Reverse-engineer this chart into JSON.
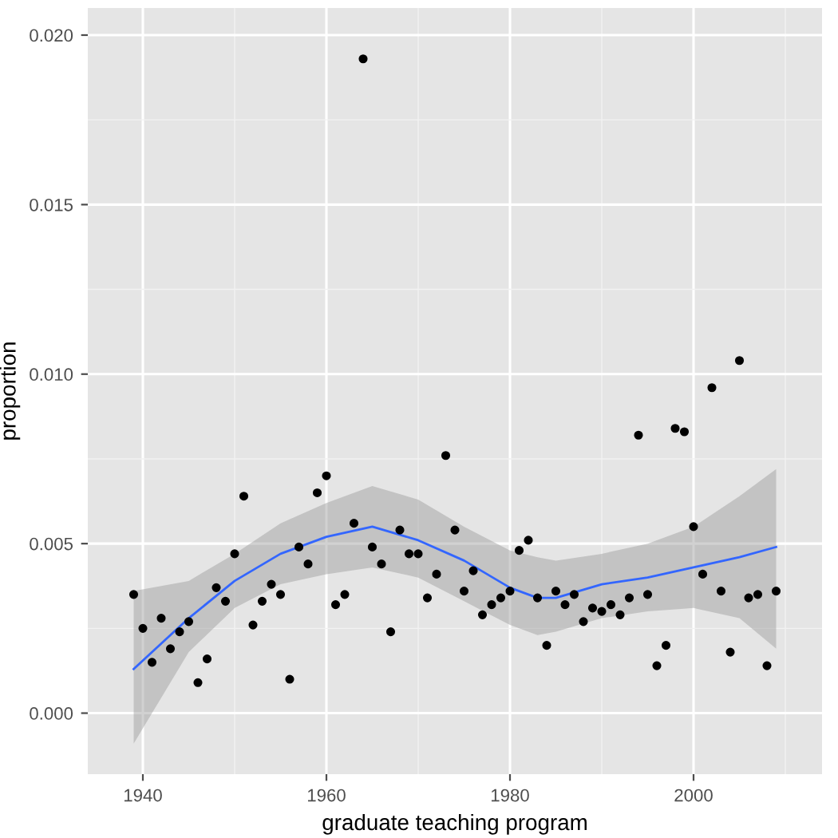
{
  "chart_data": {
    "type": "scatter",
    "xlabel": "graduate teaching program",
    "ylabel": "proportion",
    "xlim": [
      1934,
      2014
    ],
    "ylim": [
      -0.0018,
      0.0208
    ],
    "xticks": [
      1940,
      {
        "value": 1950,
        "label": null
      },
      1960,
      {
        "value": 1970,
        "label": null
      },
      1980,
      {
        "value": 1990,
        "label": null
      },
      2000,
      {
        "value": 2010,
        "label": null
      }
    ],
    "yticks": [
      {
        "value": 0,
        "label": "0.000"
      },
      {
        "value": 0.0025,
        "label": null
      },
      {
        "value": 0.005,
        "label": "0.005"
      },
      {
        "value": 0.0075,
        "label": null
      },
      {
        "value": 0.01,
        "label": "0.010"
      },
      {
        "value": 0.0125,
        "label": null
      },
      {
        "value": 0.015,
        "label": "0.015"
      },
      {
        "value": 0.0175,
        "label": null
      },
      {
        "value": 0.02,
        "label": "0.020"
      }
    ],
    "grid": true,
    "series": [
      {
        "marker": "circle",
        "color": "#000000",
        "x": [
          1939,
          1940,
          1941,
          1942,
          1943,
          1944,
          1945,
          1946,
          1947,
          1948,
          1949,
          1950,
          1951,
          1952,
          1953,
          1954,
          1955,
          1956,
          1957,
          1958,
          1959,
          1960,
          1961,
          1962,
          1963,
          1964,
          1965,
          1966,
          1967,
          1968,
          1969,
          1970,
          1971,
          1972,
          1973,
          1974,
          1975,
          1976,
          1977,
          1978,
          1979,
          1980,
          1981,
          1982,
          1983,
          1984,
          1985,
          1986,
          1987,
          1988,
          1989,
          1990,
          1991,
          1992,
          1993,
          1994,
          1995,
          1996,
          1997,
          1998,
          1999,
          2000,
          2001,
          2002,
          2003,
          2004,
          2005,
          2006,
          2007,
          2008,
          2009
        ],
        "values": [
          0.0035,
          0.0025,
          0.0015,
          0.0028,
          0.0019,
          0.0024,
          0.0027,
          0.0009,
          0.0016,
          0.0037,
          0.0033,
          0.0047,
          0.0064,
          0.0026,
          0.0033,
          0.0038,
          0.0035,
          0.001,
          0.0049,
          0.0044,
          0.0065,
          0.007,
          0.0032,
          0.0035,
          0.0056,
          0.0193,
          0.0049,
          0.0044,
          0.0024,
          0.0054,
          0.0047,
          0.0047,
          0.0034,
          0.0041,
          0.0076,
          0.0054,
          0.0036,
          0.0042,
          0.0029,
          0.0032,
          0.0034,
          0.0036,
          0.0048,
          0.0051,
          0.0034,
          0.002,
          0.0036,
          0.0032,
          0.0035,
          0.0027,
          0.0031,
          0.003,
          0.0032,
          0.0029,
          0.0034,
          0.0082,
          0.0035,
          0.0014,
          0.002,
          0.0084,
          0.0083,
          0.0055,
          0.0041,
          0.0096,
          0.0036,
          0.0018,
          0.0104,
          0.0034,
          0.0035,
          0.0014,
          0.0036
        ]
      },
      {
        "type": "line",
        "color": "#3366ff",
        "x": [
          1939,
          1945,
          1950,
          1955,
          1960,
          1965,
          1970,
          1975,
          1980,
          1983,
          1985,
          1990,
          1995,
          2000,
          2005,
          2009
        ],
        "values": [
          0.0013,
          0.0028,
          0.0039,
          0.0047,
          0.0052,
          0.0055,
          0.0051,
          0.0045,
          0.0037,
          0.0034,
          0.0034,
          0.0038,
          0.004,
          0.0043,
          0.0046,
          0.0049
        ],
        "lower": [
          -0.0009,
          0.0018,
          0.0031,
          0.0038,
          0.0041,
          0.0043,
          0.004,
          0.0033,
          0.0026,
          0.0023,
          0.0024,
          0.0028,
          0.003,
          0.0031,
          0.0028,
          0.0019
        ],
        "upper": [
          0.0036,
          0.0039,
          0.0047,
          0.0056,
          0.0062,
          0.0067,
          0.0063,
          0.0055,
          0.0048,
          0.0046,
          0.0045,
          0.0047,
          0.005,
          0.0055,
          0.0064,
          0.0072
        ]
      }
    ]
  }
}
